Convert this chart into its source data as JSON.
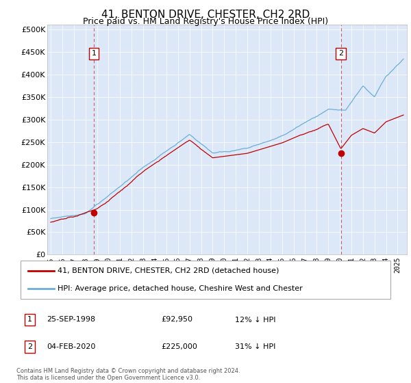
{
  "title": "41, BENTON DRIVE, CHESTER, CH2 2RD",
  "subtitle": "Price paid vs. HM Land Registry's House Price Index (HPI)",
  "title_fontsize": 11,
  "subtitle_fontsize": 9,
  "ylim": [
    0,
    510000
  ],
  "yticks": [
    0,
    50000,
    100000,
    150000,
    200000,
    250000,
    300000,
    350000,
    400000,
    450000,
    500000
  ],
  "xlim_start": 1994.7,
  "xlim_end": 2025.8,
  "background_color": "#dce8f8",
  "hpi_color": "#6baed6",
  "price_color": "#c00000",
  "sale1_x": 1998.73,
  "sale1_y": 92950,
  "sale1_label": "1",
  "sale2_x": 2020.09,
  "sale2_y": 225000,
  "sale2_label": "2",
  "sale1_date": "25-SEP-1998",
  "sale1_price": "£92,950",
  "sale1_hpi": "12% ↓ HPI",
  "sale2_date": "04-FEB-2020",
  "sale2_price": "£225,000",
  "sale2_hpi": "31% ↓ HPI",
  "legend_line1": "41, BENTON DRIVE, CHESTER, CH2 2RD (detached house)",
  "legend_line2": "HPI: Average price, detached house, Cheshire West and Chester",
  "footnote": "Contains HM Land Registry data © Crown copyright and database right 2024.\nThis data is licensed under the Open Government Licence v3.0.",
  "hpi_breakpoints": [
    1995,
    1998,
    2000,
    2003,
    2007,
    2009,
    2012,
    2015,
    2017,
    2019,
    2020.5,
    2022,
    2023,
    2024,
    2025.5
  ],
  "hpi_values": [
    80000,
    95000,
    135000,
    195000,
    270000,
    230000,
    240000,
    265000,
    295000,
    320000,
    315000,
    370000,
    345000,
    390000,
    430000
  ],
  "price_breakpoints": [
    1995,
    1997,
    1998.73,
    2000,
    2003,
    2007,
    2009,
    2012,
    2015,
    2017,
    2019,
    2020.09,
    2021,
    2022,
    2023,
    2024,
    2025.5
  ],
  "price_values": [
    72000,
    80000,
    92950,
    115000,
    175000,
    245000,
    205000,
    215000,
    238000,
    260000,
    280000,
    225000,
    255000,
    270000,
    260000,
    285000,
    300000
  ]
}
